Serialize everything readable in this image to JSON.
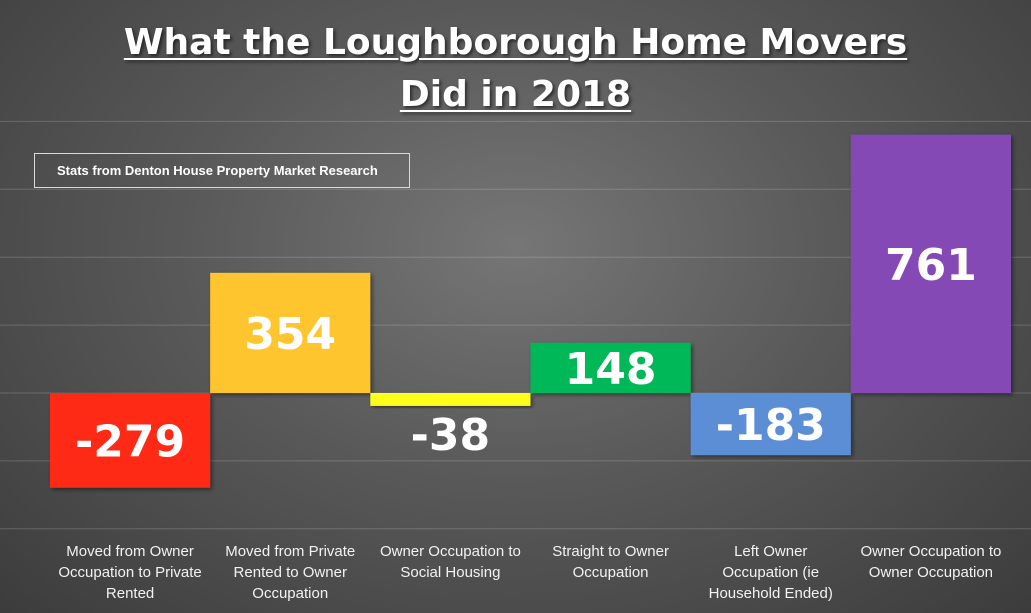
{
  "chart_data": {
    "type": "bar",
    "title_lines": [
      "What the Loughborough Home Movers",
      "Did in 2018"
    ],
    "source_note": "Stats from Denton House Property Market Research",
    "categories": [
      [
        "Moved from Owner",
        "Occupation to Private",
        "Rented"
      ],
      [
        "Moved from Private",
        "Rented to Owner",
        "Occupation"
      ],
      [
        "Owner Occupation to",
        "Social Housing"
      ],
      [
        "Straight to Owner",
        "Occupation"
      ],
      [
        "Left Owner",
        "Occupation (ie",
        "Household Ended)"
      ],
      [
        "Owner Occupation to",
        "Owner Occupation"
      ]
    ],
    "values": [
      -279,
      354,
      -38,
      148,
      -183,
      761
    ],
    "value_labels": [
      "-279",
      "354",
      "-38",
      "148",
      "-183",
      "761"
    ],
    "bar_colors": [
      "#ff2a17",
      "#ffc52f",
      "#ffff1a",
      "#00b858",
      "#5b8ed6",
      "#8549b5"
    ],
    "ylim": [
      -400,
      800
    ],
    "grid": true,
    "legend": "none"
  }
}
